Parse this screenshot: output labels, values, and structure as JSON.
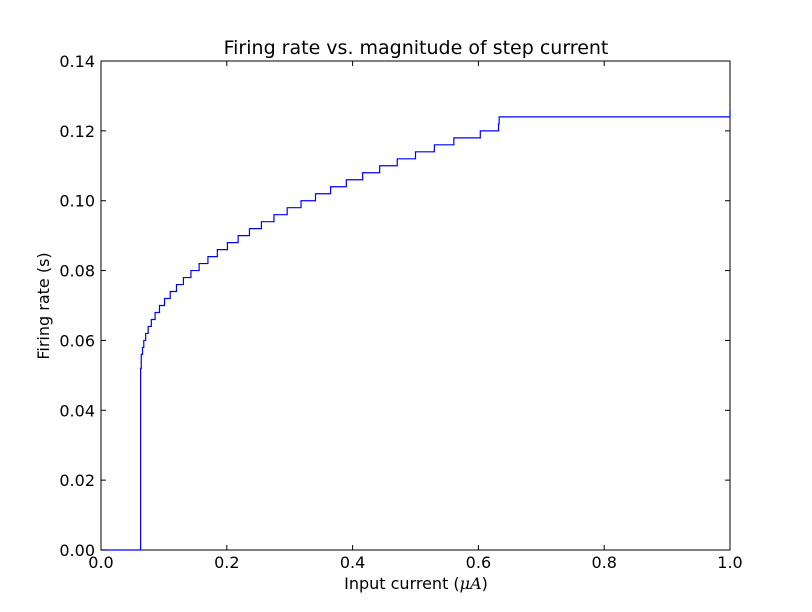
{
  "chart_data": {
    "type": "line",
    "title": "Firing rate vs. magnitude of step current",
    "xlabel": "Input current (",
    "xlabel_unit": "μA",
    "xlabel_close": ")",
    "ylabel": "Firing rate (s)",
    "xlim": [
      0.0,
      1.0
    ],
    "ylim": [
      0.0,
      0.14
    ],
    "xticks": [
      "0.0",
      "0.2",
      "0.4",
      "0.6",
      "0.8",
      "1.0"
    ],
    "xtick_values": [
      0.0,
      0.2,
      0.4,
      0.6,
      0.8,
      1.0
    ],
    "yticks": [
      "0.00",
      "0.02",
      "0.04",
      "0.06",
      "0.08",
      "0.10",
      "0.12",
      "0.14"
    ],
    "ytick_values": [
      0.0,
      0.02,
      0.04,
      0.06,
      0.08,
      0.1,
      0.12,
      0.14
    ],
    "grid": false,
    "line_color": "#0000ff",
    "series": [
      {
        "x": [
          0.0,
          0.061,
          0.063,
          0.064,
          0.066,
          0.068,
          0.071,
          0.075,
          0.08,
          0.086,
          0.093,
          0.101,
          0.11,
          0.12,
          0.131,
          0.143,
          0.156,
          0.17,
          0.185,
          0.201,
          0.218,
          0.236,
          0.255,
          0.275,
          0.296,
          0.318,
          0.341,
          0.365,
          0.39,
          0.416,
          0.443,
          0.471,
          0.5,
          0.53,
          0.561,
          0.603,
          0.632,
          0.633,
          1.0
        ],
        "y": [
          0.0,
          0.0,
          0.052,
          0.056,
          0.058,
          0.06,
          0.062,
          0.064,
          0.066,
          0.068,
          0.07,
          0.072,
          0.074,
          0.076,
          0.078,
          0.08,
          0.082,
          0.084,
          0.086,
          0.088,
          0.09,
          0.092,
          0.094,
          0.096,
          0.098,
          0.1,
          0.102,
          0.104,
          0.106,
          0.108,
          0.11,
          0.112,
          0.114,
          0.116,
          0.118,
          0.12,
          0.122,
          0.124,
          0.126
        ]
      }
    ]
  }
}
